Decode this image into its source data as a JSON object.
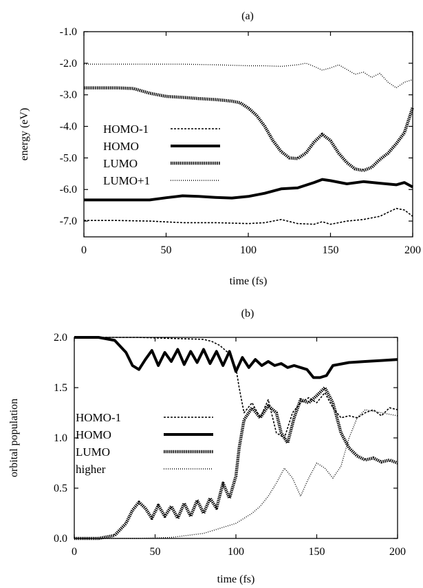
{
  "chart_data": [
    {
      "panel_label": "(a)",
      "type": "line",
      "xlabel": "time (fs)",
      "ylabel": "energy (eV)",
      "xlim": [
        0,
        200
      ],
      "ylim": [
        -7.5,
        -1.0
      ],
      "xticks": [
        0,
        50,
        100,
        150,
        200
      ],
      "yticks": [
        -1.0,
        -2.0,
        -3.0,
        -4.0,
        -5.0,
        -6.0,
        -7.0
      ],
      "xtick_labels": [
        "0",
        "50",
        "100",
        "150",
        "200"
      ],
      "ytick_labels": [
        "-1.0",
        "-2.0",
        "-3.0",
        "-4.0",
        "-5.0",
        "-6.0",
        "-7.0"
      ],
      "legend_position": "center-left",
      "series": [
        {
          "name": "HOMO-1",
          "style": "dashed",
          "x": [
            0,
            20,
            40,
            60,
            80,
            100,
            110,
            120,
            130,
            140,
            145,
            150,
            160,
            170,
            180,
            190,
            195,
            200
          ],
          "y": [
            -6.98,
            -6.98,
            -7.0,
            -7.05,
            -7.05,
            -7.08,
            -7.05,
            -6.95,
            -7.08,
            -7.1,
            -7.02,
            -7.1,
            -7.0,
            -6.95,
            -6.85,
            -6.6,
            -6.65,
            -6.85
          ]
        },
        {
          "name": "HOMO",
          "style": "thick",
          "x": [
            0,
            20,
            40,
            50,
            60,
            70,
            80,
            90,
            100,
            110,
            120,
            130,
            140,
            145,
            150,
            160,
            170,
            180,
            190,
            195,
            200
          ],
          "y": [
            -6.33,
            -6.33,
            -6.33,
            -6.26,
            -6.2,
            -6.22,
            -6.25,
            -6.27,
            -6.22,
            -6.12,
            -5.98,
            -5.95,
            -5.78,
            -5.68,
            -5.72,
            -5.82,
            -5.75,
            -5.8,
            -5.85,
            -5.78,
            -5.92
          ]
        },
        {
          "name": "LUMO",
          "style": "thick-dotted",
          "x": [
            0,
            20,
            30,
            40,
            50,
            60,
            70,
            80,
            90,
            95,
            100,
            105,
            110,
            115,
            120,
            125,
            130,
            135,
            140,
            145,
            150,
            155,
            160,
            165,
            170,
            175,
            180,
            185,
            190,
            195,
            200
          ],
          "y": [
            -2.78,
            -2.78,
            -2.8,
            -2.95,
            -3.05,
            -3.08,
            -3.12,
            -3.15,
            -3.2,
            -3.25,
            -3.42,
            -3.65,
            -4.0,
            -4.45,
            -4.8,
            -5.0,
            -5.02,
            -4.85,
            -4.5,
            -4.25,
            -4.45,
            -4.85,
            -5.15,
            -5.35,
            -5.4,
            -5.3,
            -5.05,
            -4.85,
            -4.55,
            -4.2,
            -3.4
          ]
        },
        {
          "name": "LUMO+1",
          "style": "dotted",
          "x": [
            0,
            20,
            40,
            60,
            80,
            100,
            110,
            120,
            130,
            135,
            140,
            145,
            150,
            155,
            160,
            165,
            170,
            175,
            180,
            185,
            190,
            195,
            200
          ],
          "y": [
            -2.03,
            -2.03,
            -2.03,
            -2.03,
            -2.05,
            -2.08,
            -2.08,
            -2.1,
            -2.05,
            -2.0,
            -2.1,
            -2.22,
            -2.15,
            -2.05,
            -2.2,
            -2.35,
            -2.28,
            -2.45,
            -2.32,
            -2.6,
            -2.78,
            -2.6,
            -2.52
          ]
        }
      ]
    },
    {
      "panel_label": "(b)",
      "type": "line",
      "xlabel": "time (fs)",
      "ylabel": "orbital population",
      "xlim": [
        0,
        200
      ],
      "ylim": [
        0.0,
        2.0
      ],
      "xticks": [
        0,
        50,
        100,
        150,
        200
      ],
      "yticks": [
        0.0,
        0.5,
        1.0,
        1.5,
        2.0
      ],
      "xtick_labels": [
        "0",
        "50",
        "100",
        "150",
        "200"
      ],
      "ytick_labels": [
        "0.0",
        "0.5",
        "1.0",
        "1.5",
        "2.0"
      ],
      "legend_position": "center-left",
      "series": [
        {
          "name": "HOMO-1",
          "style": "dashed",
          "x": [
            0,
            20,
            40,
            60,
            80,
            85,
            90,
            95,
            100,
            102,
            105,
            110,
            115,
            120,
            125,
            130,
            135,
            140,
            145,
            150,
            155,
            160,
            165,
            170,
            175,
            180,
            185,
            190,
            195,
            200
          ],
          "y": [
            2.0,
            2.0,
            2.0,
            1.99,
            1.98,
            1.96,
            1.92,
            1.85,
            1.7,
            1.5,
            1.25,
            1.35,
            1.2,
            1.38,
            1.05,
            1.0,
            1.25,
            1.35,
            1.4,
            1.35,
            1.45,
            1.3,
            1.2,
            1.22,
            1.2,
            1.25,
            1.28,
            1.22,
            1.3,
            1.28
          ]
        },
        {
          "name": "HOMO",
          "style": "thick",
          "x": [
            0,
            15,
            25,
            32,
            36,
            40,
            44,
            48,
            52,
            56,
            60,
            64,
            68,
            72,
            76,
            80,
            84,
            88,
            92,
            96,
            100,
            104,
            108,
            112,
            116,
            120,
            124,
            128,
            132,
            136,
            140,
            144,
            148,
            152,
            156,
            160,
            170,
            180,
            190,
            200
          ],
          "y": [
            2.0,
            2.0,
            1.97,
            1.85,
            1.72,
            1.68,
            1.78,
            1.87,
            1.72,
            1.85,
            1.76,
            1.88,
            1.73,
            1.86,
            1.75,
            1.88,
            1.74,
            1.86,
            1.72,
            1.86,
            1.66,
            1.8,
            1.7,
            1.78,
            1.72,
            1.76,
            1.72,
            1.74,
            1.7,
            1.72,
            1.7,
            1.68,
            1.6,
            1.6,
            1.62,
            1.72,
            1.75,
            1.76,
            1.77,
            1.78
          ]
        },
        {
          "name": "LUMO",
          "style": "thick-dotted",
          "x": [
            0,
            15,
            25,
            32,
            36,
            40,
            44,
            48,
            52,
            56,
            60,
            64,
            68,
            72,
            76,
            80,
            84,
            88,
            92,
            96,
            100,
            102,
            105,
            110,
            115,
            120,
            125,
            128,
            132,
            136,
            140,
            145,
            150,
            155,
            160,
            165,
            170,
            175,
            180,
            185,
            190,
            195,
            200
          ],
          "y": [
            0.0,
            0.0,
            0.03,
            0.15,
            0.28,
            0.36,
            0.3,
            0.2,
            0.33,
            0.22,
            0.32,
            0.2,
            0.35,
            0.22,
            0.38,
            0.25,
            0.4,
            0.3,
            0.55,
            0.4,
            0.62,
            0.9,
            1.18,
            1.3,
            1.2,
            1.32,
            1.25,
            1.05,
            0.95,
            1.2,
            1.38,
            1.35,
            1.42,
            1.5,
            1.35,
            1.05,
            0.9,
            0.82,
            0.78,
            0.8,
            0.76,
            0.78,
            0.75
          ]
        },
        {
          "name": "higher",
          "style": "dotted",
          "x": [
            0,
            20,
            40,
            60,
            70,
            80,
            90,
            100,
            110,
            115,
            120,
            125,
            130,
            135,
            140,
            145,
            150,
            155,
            160,
            165,
            170,
            175,
            180,
            190,
            200
          ],
          "y": [
            0.0,
            0.0,
            0.0,
            0.01,
            0.03,
            0.05,
            0.1,
            0.15,
            0.25,
            0.32,
            0.42,
            0.55,
            0.7,
            0.6,
            0.42,
            0.6,
            0.75,
            0.7,
            0.6,
            0.72,
            1.0,
            1.2,
            1.28,
            1.25,
            1.22
          ]
        }
      ]
    }
  ]
}
